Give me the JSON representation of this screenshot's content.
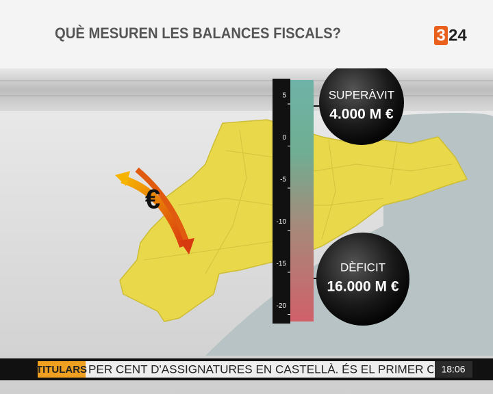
{
  "header": {
    "title": "QUÈ MESUREN LES BALANCES FISCALS?",
    "logo": {
      "digit": "3",
      "number": "24"
    }
  },
  "graphic": {
    "symbol": "€",
    "scale_ticks": [
      "5",
      "0",
      "-5",
      "-10",
      "-15",
      "-20"
    ],
    "callouts": [
      {
        "label": "SUPERÀVIT",
        "amount": "4.000 M €"
      },
      {
        "label": "DÈFICIT",
        "amount": "16.000 M €"
      }
    ]
  },
  "ticker": {
    "tag": "TITULARS",
    "headline": "PER CENT D'ASSIGNATURES EN CASTELLÀ. ÉS EL PRIMER CO",
    "time": "18:06"
  }
}
